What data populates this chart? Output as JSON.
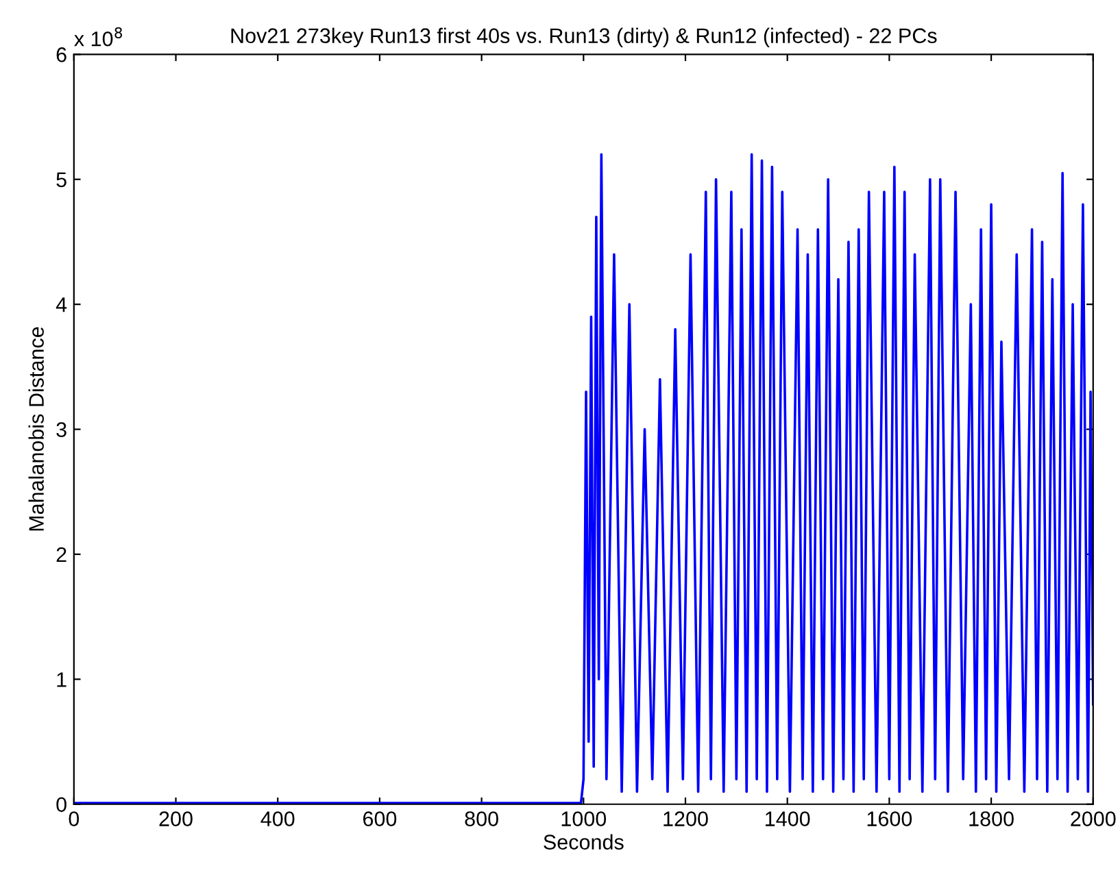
{
  "chart_data": {
    "type": "line",
    "title": "Nov21 273key Run13 first 40s vs. Run13 (dirty) & Run12 (infected) - 22 PCs",
    "xlabel": "Seconds",
    "ylabel": "Mahalanobis Distance",
    "annotations": [
      "x 10$^{8}$"
    ],
    "x": [
      0,
      995,
      1000,
      1005,
      1010,
      1015,
      1020,
      1025,
      1030,
      1035,
      1045,
      1060,
      1075,
      1090,
      1105,
      1120,
      1135,
      1150,
      1165,
      1180,
      1195,
      1210,
      1225,
      1240,
      1250,
      1260,
      1275,
      1290,
      1300,
      1310,
      1320,
      1330,
      1340,
      1350,
      1360,
      1370,
      1380,
      1390,
      1405,
      1420,
      1430,
      1440,
      1450,
      1460,
      1470,
      1480,
      1490,
      1500,
      1510,
      1520,
      1530,
      1540,
      1550,
      1560,
      1575,
      1590,
      1600,
      1610,
      1620,
      1630,
      1640,
      1650,
      1665,
      1680,
      1690,
      1700,
      1715,
      1730,
      1745,
      1760,
      1770,
      1780,
      1790,
      1800,
      1810,
      1820,
      1835,
      1850,
      1865,
      1880,
      1890,
      1900,
      1910,
      1920,
      1930,
      1940,
      1950,
      1960,
      1970,
      1980,
      1990,
      1995,
      2000
    ],
    "series": [
      {
        "color": "#0000ff",
        "values": [
          0.01,
          0.01,
          0.2,
          3.3,
          0.5,
          3.9,
          0.3,
          4.7,
          1.0,
          5.2,
          0.2,
          4.4,
          0.1,
          4.0,
          0.1,
          3.0,
          0.2,
          3.4,
          0.1,
          3.8,
          0.2,
          4.4,
          0.1,
          4.9,
          0.2,
          5.0,
          0.1,
          4.9,
          0.2,
          4.6,
          0.1,
          5.2,
          0.2,
          5.15,
          0.1,
          5.1,
          0.2,
          4.9,
          0.1,
          4.6,
          0.2,
          4.4,
          0.1,
          4.6,
          0.2,
          5.0,
          0.1,
          4.2,
          0.2,
          4.5,
          0.1,
          4.6,
          0.2,
          4.9,
          0.1,
          4.9,
          0.2,
          5.1,
          0.1,
          4.9,
          0.2,
          4.4,
          0.1,
          5.0,
          0.2,
          5.0,
          0.1,
          4.9,
          0.2,
          4.0,
          0.1,
          4.6,
          0.2,
          4.8,
          0.1,
          3.7,
          0.2,
          4.4,
          0.1,
          4.6,
          0.2,
          4.5,
          0.1,
          4.2,
          0.2,
          5.05,
          0.1,
          4.0,
          0.2,
          4.8,
          0.1,
          3.3,
          0.8
        ]
      }
    ],
    "xlim": [
      0,
      2000
    ],
    "xticks": [
      0,
      200,
      400,
      600,
      800,
      1000,
      1200,
      1400,
      1600,
      1800,
      2000
    ],
    "ylim": [
      0,
      6
    ],
    "yticks": [
      0,
      1,
      2,
      3,
      4,
      5,
      6
    ],
    "grid": false,
    "legend": false,
    "line_style": "solid"
  }
}
